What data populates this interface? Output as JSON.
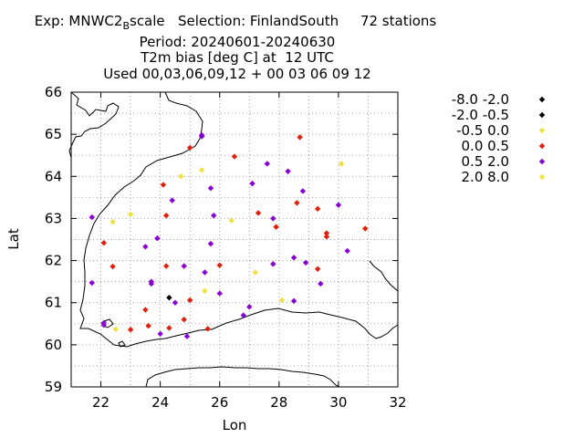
{
  "title": {
    "exp_prefix": "Exp: MNWC2",
    "exp_sub": "B",
    "exp_suffix": "scale",
    "selection": "Selection: FinlandSouth",
    "stations": "72 stations",
    "period": "Period: 20240601-20240630",
    "parameter": "T2m bias [deg C] at  12 UTC",
    "used": "Used 00,03,06,09,12 + 00 03 06 09 12"
  },
  "chart_data": {
    "type": "scatter",
    "xlabel": "Lon",
    "ylabel": "Lat",
    "xlim": [
      21,
      32
    ],
    "ylim": [
      59,
      66
    ],
    "xticks": [
      22,
      24,
      26,
      28,
      30,
      32
    ],
    "yticks": [
      59,
      60,
      61,
      62,
      63,
      64,
      65,
      66
    ],
    "grid": true,
    "legend_position": "right",
    "legend": [
      {
        "label": "-8.0 -2.0",
        "color": "#000000"
      },
      {
        "label": "-2.0 -0.5",
        "color": "#000000"
      },
      {
        "label": "-0.5 0.0",
        "color": "#f0e040"
      },
      {
        "label": "0.0 0.5",
        "color": "#e0200a"
      },
      {
        "label": "0.5 2.0",
        "color": "#8a00d4"
      },
      {
        "label": "2.0 8.0",
        "color": "#f0e040"
      }
    ],
    "series": [
      {
        "name": "-2.0 -0.5",
        "color": "#000000",
        "points": [
          [
            24.3,
            61.12
          ]
        ]
      },
      {
        "name": "-0.5 0.0",
        "color": "#f0e040",
        "points": [
          [
            22.4,
            62.92
          ],
          [
            23.0,
            63.1
          ],
          [
            24.7,
            64.0
          ],
          [
            25.4,
            64.15
          ],
          [
            26.4,
            62.95
          ],
          [
            27.2,
            61.72
          ],
          [
            30.1,
            64.3
          ],
          [
            28.1,
            61.06
          ],
          [
            25.5,
            61.28
          ],
          [
            22.5,
            60.37
          ]
        ]
      },
      {
        "name": "0.0 0.5",
        "color": "#e0200a",
        "points": [
          [
            25.0,
            64.68
          ],
          [
            26.5,
            64.47
          ],
          [
            28.7,
            64.93
          ],
          [
            24.1,
            63.8
          ],
          [
            24.2,
            63.07
          ],
          [
            27.3,
            63.13
          ],
          [
            27.9,
            62.8
          ],
          [
            28.6,
            63.37
          ],
          [
            29.3,
            63.23
          ],
          [
            29.6,
            62.65
          ],
          [
            29.6,
            62.57
          ],
          [
            30.9,
            62.76
          ],
          [
            22.1,
            62.42
          ],
          [
            22.4,
            61.86
          ],
          [
            24.2,
            61.87
          ],
          [
            26.0,
            61.89
          ],
          [
            29.3,
            61.8
          ],
          [
            25.0,
            61.06
          ],
          [
            23.5,
            60.83
          ],
          [
            23.6,
            60.45
          ],
          [
            23.0,
            60.36
          ],
          [
            24.3,
            60.4
          ],
          [
            24.8,
            60.6
          ],
          [
            25.6,
            60.38
          ]
        ]
      },
      {
        "name": "0.5 2.0",
        "color": "#8a00d4",
        "points": [
          [
            25.4,
            64.98
          ],
          [
            25.4,
            64.95
          ],
          [
            27.6,
            64.3
          ],
          [
            28.3,
            64.12
          ],
          [
            25.7,
            63.72
          ],
          [
            27.1,
            63.83
          ],
          [
            28.8,
            63.65
          ],
          [
            24.4,
            63.43
          ],
          [
            21.7,
            63.03
          ],
          [
            25.8,
            63.07
          ],
          [
            27.8,
            63.0
          ],
          [
            30.0,
            63.32
          ],
          [
            23.9,
            62.53
          ],
          [
            23.5,
            62.33
          ],
          [
            25.7,
            62.4
          ],
          [
            30.3,
            62.23
          ],
          [
            23.7,
            61.5
          ],
          [
            23.7,
            61.45
          ],
          [
            24.8,
            61.87
          ],
          [
            25.5,
            61.72
          ],
          [
            27.8,
            61.92
          ],
          [
            28.5,
            62.07
          ],
          [
            28.9,
            61.95
          ],
          [
            21.7,
            61.47
          ],
          [
            29.4,
            61.45
          ],
          [
            24.5,
            61.0
          ],
          [
            26.0,
            61.22
          ],
          [
            27.0,
            60.9
          ],
          [
            28.5,
            61.04
          ],
          [
            26.8,
            60.7
          ],
          [
            22.1,
            60.47
          ],
          [
            22.1,
            60.52
          ],
          [
            24.0,
            60.26
          ],
          [
            24.9,
            60.2
          ]
        ]
      }
    ]
  }
}
